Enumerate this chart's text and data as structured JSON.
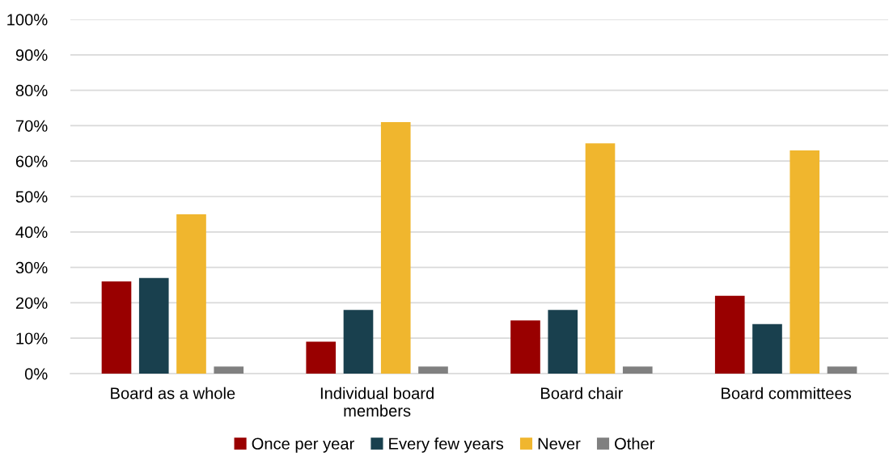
{
  "chart_data": {
    "type": "bar",
    "categories": [
      "Board as a whole",
      "Individual board\nmembers",
      "Board chair",
      "Board committees"
    ],
    "series": [
      {
        "name": "Once per year",
        "color": "#990000",
        "values": [
          26,
          9,
          15,
          22
        ]
      },
      {
        "name": "Every few years",
        "color": "#19404e",
        "values": [
          27,
          18,
          18,
          14
        ]
      },
      {
        "name": "Never",
        "color": "#f0b62e",
        "values": [
          45,
          71,
          65,
          63
        ]
      },
      {
        "name": "Other",
        "color": "#808080",
        "values": [
          2,
          2,
          2,
          2
        ]
      }
    ],
    "ylim": [
      0,
      100
    ],
    "yticks": [
      {
        "value": 0,
        "label": "0%"
      },
      {
        "value": 10,
        "label": "10%"
      },
      {
        "value": 20,
        "label": "20%"
      },
      {
        "value": 30,
        "label": "30%"
      },
      {
        "value": 40,
        "label": "40%"
      },
      {
        "value": 50,
        "label": "50%"
      },
      {
        "value": 60,
        "label": "60%"
      },
      {
        "value": 70,
        "label": "70%"
      },
      {
        "value": 80,
        "label": "80%"
      },
      {
        "value": 90,
        "label": "90%"
      },
      {
        "value": 100,
        "label": "100%"
      }
    ],
    "grid": "y",
    "legend": "bottom"
  }
}
